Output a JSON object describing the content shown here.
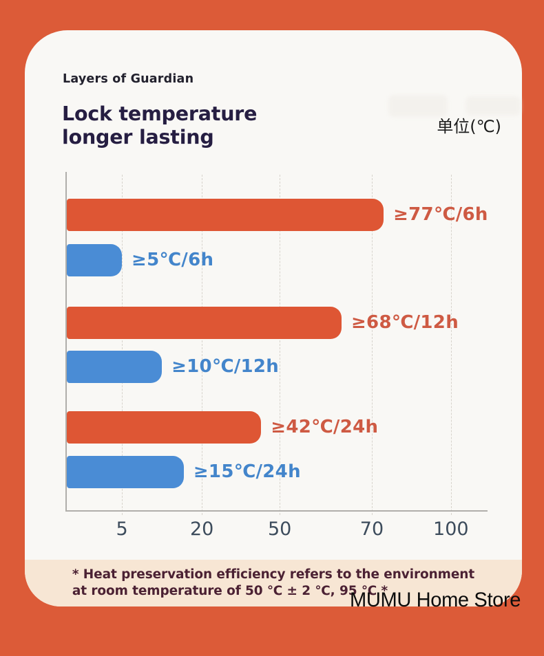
{
  "page": {
    "background_color": "#DC5B38",
    "card_color": "#F9F8F5",
    "footband_color": "#F7E6D4",
    "ghost_color": "#F0EDE8",
    "axis_line_color": "#B0AEAA",
    "tick_label_color": "#3D4C5C",
    "title_color": "#261E42",
    "eyebrow_color": "#22212D",
    "unit_color": "#1C1C1C",
    "footnote_color": "#4B2133"
  },
  "header": {
    "eyebrow": "Layers of Guardian",
    "title_line1": "Lock temperature",
    "title_line2": "longer lasting",
    "unit_label": "单位(℃)"
  },
  "chart_data": {
    "type": "bar",
    "orientation": "horizontal",
    "title": "Lock temperature longer lasting",
    "unit": "℃",
    "x_ticks": [
      "5",
      "20",
      "50",
      "70",
      "100"
    ],
    "x_tick_pcts": [
      13.1,
      32.1,
      50.6,
      72.5,
      91.3
    ],
    "axis_note": "non-linear temperature axis in ℃",
    "grid": "dashed-vertical",
    "bars": [
      {
        "label": "≥77℃/6h",
        "value": 77,
        "duration_hours": 6,
        "series": "hot",
        "width_pct": 75.3
      },
      {
        "label": "≥5℃/6h",
        "value": 5,
        "duration_hours": 6,
        "series": "cold",
        "width_pct": 13.1
      },
      {
        "label": "≥68℃/12h",
        "value": 68,
        "duration_hours": 12,
        "series": "hot",
        "width_pct": 65.3
      },
      {
        "label": "≥10℃/12h",
        "value": 10,
        "duration_hours": 12,
        "series": "cold",
        "width_pct": 22.6
      },
      {
        "label": "≥42℃/24h",
        "value": 42,
        "duration_hours": 24,
        "series": "hot",
        "width_pct": 46.2
      },
      {
        "label": "≥15℃/24h",
        "value": 15,
        "duration_hours": 24,
        "series": "cold",
        "width_pct": 27.8
      }
    ],
    "series_colors": {
      "hot": "#DE5634",
      "cold": "#4A8CD5"
    },
    "label_colors": {
      "hot": "#CE5A43",
      "cold": "#4385CB"
    }
  },
  "footnote": {
    "line1": "* Heat preservation efficiency refers to the environment",
    "line2": "at room temperature of 50 ℃ ± 2 ℃, 95 ℃ *"
  },
  "watermark": {
    "store_name": "MUMU Home Store"
  }
}
